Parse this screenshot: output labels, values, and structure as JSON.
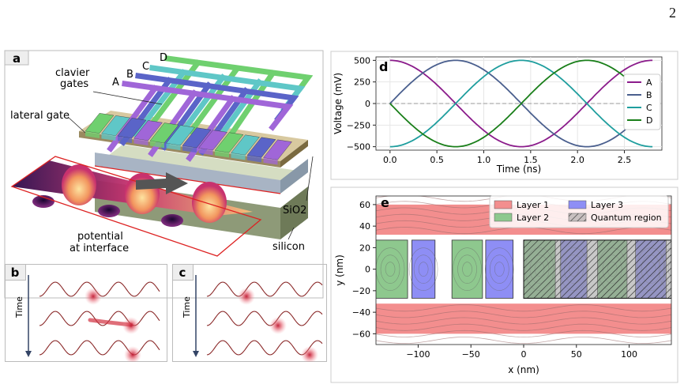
{
  "page_number": "2",
  "panel_a": {
    "label": "a",
    "gate_letters": [
      "A",
      "B",
      "C",
      "D"
    ],
    "clavier_label_line1": "clavier",
    "clavier_label_line2": "gates",
    "lateral_label": "lateral gate",
    "sio2_label": "SiO2",
    "silicon_label": "silicon",
    "potential_line1": "potential",
    "potential_line2": "at interface",
    "gate_colors": [
      "#6fd06f",
      "#5fc7c7",
      "#5a64c8",
      "#a066d8"
    ]
  },
  "panel_b": {
    "label": "b",
    "time_label": "Time"
  },
  "panel_c": {
    "label": "c",
    "time_label": "Time"
  },
  "chart_data": [
    {
      "panel": "d",
      "type": "line",
      "xlabel": "Time (ns)",
      "ylabel": "Voltage (mV)",
      "xlim": [
        -0.15,
        2.9
      ],
      "ylim": [
        -540,
        540
      ],
      "xticks": [
        0.0,
        0.5,
        1.0,
        1.5,
        2.0,
        2.5
      ],
      "xtick_labels": [
        "0.0",
        "0.5",
        "1.0",
        "1.5",
        "2.0",
        "2.5"
      ],
      "yticks": [
        500,
        250,
        0,
        -250,
        -500
      ],
      "ytick_labels": [
        "500",
        "250",
        "0",
        "−250",
        "−500"
      ],
      "grid": true,
      "zero_line": true,
      "legend_position": "right",
      "period_ns": 2.8,
      "amplitude_mV": 500,
      "series": [
        {
          "name": "A",
          "color": "#8b1c8b",
          "phase_deg": 90
        },
        {
          "name": "B",
          "color": "#4a5f8e",
          "phase_deg": 0
        },
        {
          "name": "C",
          "color": "#1f9e9e",
          "phase_deg": -90
        },
        {
          "name": "D",
          "color": "#1a7f1a",
          "phase_deg": 180
        }
      ]
    },
    {
      "panel": "e",
      "type": "heatmap",
      "xlabel": "x (nm)",
      "ylabel": "y (nm)",
      "xlim": [
        -140,
        140
      ],
      "ylim": [
        -70,
        68
      ],
      "xticks": [
        -100,
        -50,
        0,
        50,
        100
      ],
      "xtick_labels": [
        "−100",
        "−50",
        "0",
        "50",
        "100"
      ],
      "yticks": [
        60,
        40,
        20,
        0,
        -20,
        -40,
        -60
      ],
      "ytick_labels": [
        "60",
        "40",
        "20",
        "0",
        "−20",
        "−40",
        "−60"
      ],
      "legend_position": "top",
      "legend": [
        {
          "name": "Layer 1",
          "color": "#f38e8e",
          "hatch": false
        },
        {
          "name": "Layer 2",
          "color": "#8ec88e",
          "hatch": false
        },
        {
          "name": "Layer 3",
          "color": "#8e8ef5",
          "hatch": false
        },
        {
          "name": "Quantum region",
          "color": "#9a9a9a",
          "hatch": true
        }
      ],
      "layer1_bands": [
        {
          "x": [
            -140,
            140
          ],
          "y": [
            32,
            60
          ]
        },
        {
          "x": [
            -140,
            140
          ],
          "y": [
            -60,
            -32
          ]
        }
      ],
      "gates": [
        {
          "layer": 2,
          "x": [
            -143,
            -110
          ],
          "y": [
            -27,
            27
          ]
        },
        {
          "layer": 3,
          "x": [
            -106,
            -84
          ],
          "y": [
            -27,
            27
          ]
        },
        {
          "layer": 2,
          "x": [
            -68,
            -39
          ],
          "y": [
            -27,
            27
          ]
        },
        {
          "layer": 3,
          "x": [
            -36,
            -10
          ],
          "y": [
            -27,
            27
          ]
        },
        {
          "layer": 2,
          "x": [
            0,
            30
          ],
          "y": [
            -27,
            27
          ]
        },
        {
          "layer": 3,
          "x": [
            35,
            60
          ],
          "y": [
            -27,
            27
          ]
        },
        {
          "layer": 2,
          "x": [
            70,
            98
          ],
          "y": [
            -27,
            27
          ]
        },
        {
          "layer": 3,
          "x": [
            106,
            135
          ],
          "y": [
            -27,
            27
          ]
        },
        {
          "layer": 2,
          "x": [
            140,
            143
          ],
          "y": [
            -27,
            27
          ]
        }
      ],
      "quantum_region": {
        "x": [
          0,
          143
        ],
        "y": [
          -27,
          27
        ]
      }
    }
  ]
}
